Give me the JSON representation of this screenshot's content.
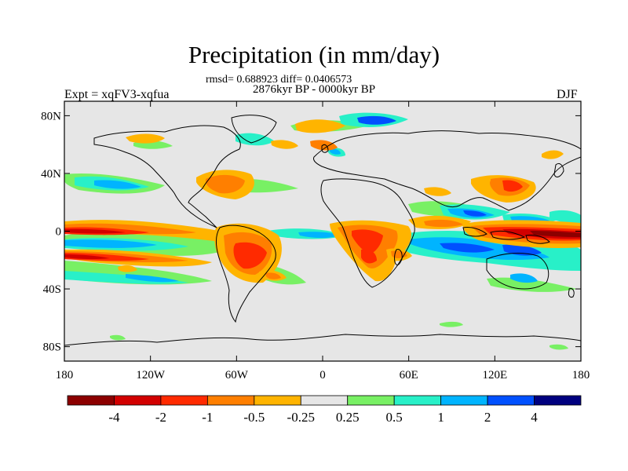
{
  "header": {
    "title": "Precipitation (in mm/day)",
    "stats": "rmsd= 0.688923 diff= 0.0406573",
    "period": "2876kyr BP - 0000kyr BP",
    "experiment": "Expt = xqFV3-xqfua",
    "season": "DJF"
  },
  "map": {
    "lat_labels": [
      "80N",
      "40N",
      "0",
      "40S",
      "80S"
    ],
    "lat_values": [
      80,
      40,
      0,
      -40,
      -80
    ],
    "lon_labels": [
      "180",
      "120W",
      "60W",
      "0",
      "60E",
      "120E",
      "180"
    ],
    "lon_values": [
      -180,
      -120,
      -60,
      0,
      60,
      120,
      180
    ],
    "lat_range": [
      -90,
      90
    ],
    "lon_range": [
      -180,
      180
    ],
    "background_color": "#e6e6e6"
  },
  "colorbar": {
    "labels": [
      "-4",
      "-2",
      "-1",
      "-0.5",
      "-0.25",
      "0.25",
      "0.5",
      "1",
      "2",
      "4"
    ],
    "colors": [
      "#8c0000",
      "#d20000",
      "#ff2a00",
      "#ff7f00",
      "#ffb400",
      "#e6e6e6",
      "#78f064",
      "#28f0c8",
      "#00b4ff",
      "#0050ff",
      "#00007f"
    ]
  }
}
